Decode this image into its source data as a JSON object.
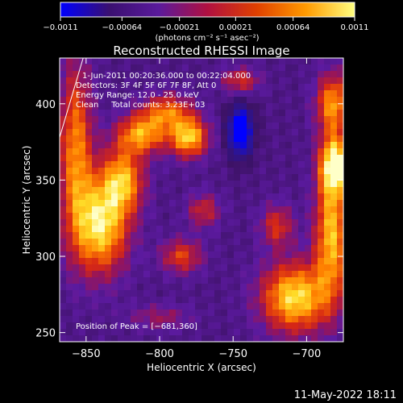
{
  "chart_data": {
    "type": "heatmap",
    "title": "Reconstructed RHESSI Image",
    "xlabel": "Heliocentric X (arcsec)",
    "ylabel": "Heliocentric Y (arcsec)",
    "xlim": [
      -868,
      -675
    ],
    "ylim": [
      244,
      430
    ],
    "x_ticks": [
      {
        "value": -850,
        "label": "−850"
      },
      {
        "value": -800,
        "label": "−800"
      },
      {
        "value": -750,
        "label": "−750"
      },
      {
        "value": -700,
        "label": "−700"
      }
    ],
    "y_ticks": [
      {
        "value": 250,
        "label": "250"
      },
      {
        "value": 300,
        "label": "300"
      },
      {
        "value": 350,
        "label": "350"
      },
      {
        "value": 400,
        "label": "400"
      }
    ],
    "colorbar": {
      "min": -0.0011,
      "max": 0.0011,
      "ticks": [
        {
          "value": -0.0011,
          "label": "−0.0011"
        },
        {
          "value": -0.00064,
          "label": "−0.00064"
        },
        {
          "value": -0.00021,
          "label": "−0.00021"
        },
        {
          "value": 0.00021,
          "label": "0.00021"
        },
        {
          "value": 0.00064,
          "label": "0.00064"
        },
        {
          "value": 0.0011,
          "label": "0.0011"
        }
      ],
      "unit_label": "(photons cm⁻² s⁻¹ asec⁻²)",
      "colors": [
        "#0000ff",
        "#3a1070",
        "#5a1a9c",
        "#b01040",
        "#e04000",
        "#ff9a00",
        "#ffff80"
      ]
    },
    "sources": [
      {
        "x": -857,
        "y": 370,
        "sx": 8,
        "sy": 40,
        "a": 0.75
      },
      {
        "x": -840,
        "y": 320,
        "sx": 13,
        "sy": 22,
        "a": 1.0
      },
      {
        "x": -825,
        "y": 350,
        "sx": 10,
        "sy": 15,
        "a": 0.8
      },
      {
        "x": -812,
        "y": 380,
        "sx": 12,
        "sy": 9,
        "a": 0.8
      },
      {
        "x": -795,
        "y": 395,
        "sx": 12,
        "sy": 8,
        "a": 0.65
      },
      {
        "x": -780,
        "y": 378,
        "sx": 9,
        "sy": 9,
        "a": 0.95
      },
      {
        "x": -785,
        "y": 300,
        "sx": 10,
        "sy": 8,
        "a": 0.55
      },
      {
        "x": -770,
        "y": 330,
        "sx": 8,
        "sy": 8,
        "a": 0.45
      },
      {
        "x": -745,
        "y": 415,
        "sx": 9,
        "sy": 6,
        "a": 0.5
      },
      {
        "x": -720,
        "y": 320,
        "sx": 8,
        "sy": 10,
        "a": 0.5
      },
      {
        "x": -708,
        "y": 273,
        "sx": 16,
        "sy": 16,
        "a": 1.0
      },
      {
        "x": -683,
        "y": 315,
        "sx": 8,
        "sy": 30,
        "a": 0.9
      },
      {
        "x": -681,
        "y": 360,
        "sx": 7,
        "sy": 13,
        "a": 1.05
      },
      {
        "x": -682,
        "y": 400,
        "sx": 8,
        "sy": 14,
        "a": 0.8
      },
      {
        "x": -800,
        "y": 260,
        "sx": 15,
        "sy": 6,
        "a": 0.3
      },
      {
        "x": -745,
        "y": 382,
        "sx": 6,
        "sy": 12,
        "a": -0.9
      }
    ],
    "limb_line": {
      "x1": -868,
      "y1": 378,
      "x2": -852,
      "y2": 430
    },
    "info_lines": [
      "1-Jun-2011 00:20:36.000 to 00:22:04.000",
      "Detectors: 3F 4F 5F 6F 7F 8F, Att 0",
      "Energy Range: 12.0 - 25.0 keV",
      "Clean     Total counts: 3.23E+03"
    ],
    "peak_label": "Position of Peak = [−681,360]"
  },
  "footer": {
    "timestamp": "11-May-2022 18:11"
  }
}
